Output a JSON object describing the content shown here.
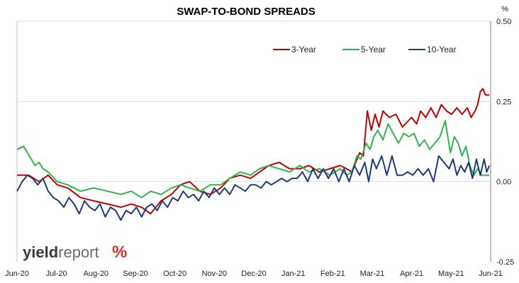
{
  "chart_data": {
    "type": "line",
    "title": "SWAP-TO-BOND SPREADS",
    "y_unit": "%",
    "ylim": [
      -0.25,
      0.5
    ],
    "yticks": [
      "0.50",
      "0.25",
      "0.00",
      "-0.25"
    ],
    "ytick_values": [
      0.5,
      0.25,
      0.0,
      -0.25
    ],
    "x_start": "2020-06-01",
    "x_end": "2021-06-01",
    "xtick_labels": [
      "Jun-20",
      "Jul-20",
      "Aug-20",
      "Sep-20",
      "Oct-20",
      "Nov-20",
      "Dec-20",
      "Jan-21",
      "Feb-21",
      "Mar-21",
      "Apr-21",
      "May-21",
      "Jun-21"
    ],
    "grid": "horizontal",
    "legend_position": "top-right",
    "series": [
      {
        "name": "3-Year",
        "color": "#c00000",
        "points": [
          [
            "2020-06-01",
            0.02
          ],
          [
            "2020-06-10",
            0.02
          ],
          [
            "2020-06-18",
            0.0
          ],
          [
            "2020-06-25",
            0.02
          ],
          [
            "2020-07-02",
            -0.01
          ],
          [
            "2020-07-10",
            -0.02
          ],
          [
            "2020-07-20",
            -0.05
          ],
          [
            "2020-07-30",
            -0.06
          ],
          [
            "2020-08-10",
            -0.07
          ],
          [
            "2020-08-20",
            -0.08
          ],
          [
            "2020-08-28",
            -0.07
          ],
          [
            "2020-09-05",
            -0.08
          ],
          [
            "2020-09-12",
            -0.1
          ],
          [
            "2020-09-20",
            -0.06
          ],
          [
            "2020-09-28",
            -0.04
          ],
          [
            "2020-10-05",
            -0.01
          ],
          [
            "2020-10-12",
            0.0
          ],
          [
            "2020-10-20",
            -0.03
          ],
          [
            "2020-10-28",
            -0.04
          ],
          [
            "2020-11-05",
            -0.02
          ],
          [
            "2020-11-12",
            0.01
          ],
          [
            "2020-11-20",
            0.02
          ],
          [
            "2020-11-28",
            0.01
          ],
          [
            "2020-12-05",
            0.03
          ],
          [
            "2020-12-12",
            0.05
          ],
          [
            "2020-12-20",
            0.06
          ],
          [
            "2020-12-28",
            0.04
          ],
          [
            "2021-01-05",
            0.04
          ],
          [
            "2021-01-12",
            0.05
          ],
          [
            "2021-01-20",
            0.03
          ],
          [
            "2021-01-28",
            0.04
          ],
          [
            "2021-02-05",
            0.05
          ],
          [
            "2021-02-10",
            0.04
          ],
          [
            "2021-02-14",
            0.03
          ],
          [
            "2021-02-17",
            0.06
          ],
          [
            "2021-02-20",
            0.09
          ],
          [
            "2021-02-23",
            0.08
          ],
          [
            "2021-02-26",
            0.22
          ],
          [
            "2021-03-01",
            0.16
          ],
          [
            "2021-03-04",
            0.21
          ],
          [
            "2021-03-07",
            0.17
          ],
          [
            "2021-03-10",
            0.22
          ],
          [
            "2021-03-15",
            0.2
          ],
          [
            "2021-03-20",
            0.21
          ],
          [
            "2021-03-25",
            0.17
          ],
          [
            "2021-04-01",
            0.2
          ],
          [
            "2021-04-05",
            0.18
          ],
          [
            "2021-04-08",
            0.22
          ],
          [
            "2021-04-12",
            0.2
          ],
          [
            "2021-04-16",
            0.23
          ],
          [
            "2021-04-20",
            0.2
          ],
          [
            "2021-04-24",
            0.24
          ],
          [
            "2021-04-28",
            0.22
          ],
          [
            "2021-05-02",
            0.21
          ],
          [
            "2021-05-06",
            0.23
          ],
          [
            "2021-05-10",
            0.21
          ],
          [
            "2021-05-14",
            0.23
          ],
          [
            "2021-05-17",
            0.2
          ],
          [
            "2021-05-20",
            0.22
          ],
          [
            "2021-05-22",
            0.24
          ],
          [
            "2021-05-24",
            0.28
          ],
          [
            "2021-05-26",
            0.29
          ],
          [
            "2021-05-28",
            0.27
          ],
          [
            "2021-05-31",
            0.27
          ]
        ]
      },
      {
        "name": "5-Year",
        "color": "#2fb34a",
        "points": [
          [
            "2020-06-01",
            0.1
          ],
          [
            "2020-06-06",
            0.11
          ],
          [
            "2020-06-09",
            0.09
          ],
          [
            "2020-06-12",
            0.07
          ],
          [
            "2020-06-15",
            0.05
          ],
          [
            "2020-06-18",
            0.06
          ],
          [
            "2020-06-21",
            0.04
          ],
          [
            "2020-06-25",
            0.03
          ],
          [
            "2020-07-02",
            0.0
          ],
          [
            "2020-07-10",
            -0.01
          ],
          [
            "2020-07-20",
            -0.03
          ],
          [
            "2020-07-30",
            -0.02
          ],
          [
            "2020-08-10",
            -0.03
          ],
          [
            "2020-08-20",
            -0.04
          ],
          [
            "2020-08-28",
            -0.03
          ],
          [
            "2020-09-05",
            -0.05
          ],
          [
            "2020-09-12",
            -0.03
          ],
          [
            "2020-09-20",
            -0.04
          ],
          [
            "2020-09-28",
            -0.02
          ],
          [
            "2020-10-05",
            -0.01
          ],
          [
            "2020-10-12",
            -0.02
          ],
          [
            "2020-10-20",
            -0.03
          ],
          [
            "2020-10-28",
            -0.01
          ],
          [
            "2020-11-05",
            -0.01
          ],
          [
            "2020-11-12",
            0.01
          ],
          [
            "2020-11-20",
            0.03
          ],
          [
            "2020-11-28",
            0.02
          ],
          [
            "2020-12-05",
            0.04
          ],
          [
            "2020-12-12",
            0.05
          ],
          [
            "2020-12-20",
            0.04
          ],
          [
            "2020-12-28",
            0.03
          ],
          [
            "2021-01-05",
            0.05
          ],
          [
            "2021-01-12",
            0.03
          ],
          [
            "2021-01-20",
            0.04
          ],
          [
            "2021-01-28",
            0.02
          ],
          [
            "2021-02-05",
            0.04
          ],
          [
            "2021-02-10",
            0.02
          ],
          [
            "2021-02-14",
            0.03
          ],
          [
            "2021-02-18",
            0.08
          ],
          [
            "2021-02-21",
            0.07
          ],
          [
            "2021-02-25",
            0.12
          ],
          [
            "2021-02-28",
            0.1
          ],
          [
            "2021-03-03",
            0.14
          ],
          [
            "2021-03-06",
            0.16
          ],
          [
            "2021-03-10",
            0.13
          ],
          [
            "2021-03-14",
            0.18
          ],
          [
            "2021-03-18",
            0.15
          ],
          [
            "2021-03-22",
            0.12
          ],
          [
            "2021-03-26",
            0.15
          ],
          [
            "2021-03-30",
            0.14
          ],
          [
            "2021-04-03",
            0.15
          ],
          [
            "2021-04-07",
            0.11
          ],
          [
            "2021-04-11",
            0.13
          ],
          [
            "2021-04-15",
            0.1
          ],
          [
            "2021-04-19",
            0.12
          ],
          [
            "2021-04-23",
            0.14
          ],
          [
            "2021-04-27",
            0.19
          ],
          [
            "2021-05-01",
            0.09
          ],
          [
            "2021-05-04",
            0.14
          ],
          [
            "2021-05-07",
            0.12
          ],
          [
            "2021-05-10",
            0.08
          ],
          [
            "2021-05-13",
            0.11
          ],
          [
            "2021-05-16",
            0.05
          ],
          [
            "2021-05-19",
            0.02
          ],
          [
            "2021-05-22",
            0.04
          ],
          [
            "2021-05-25",
            0.02
          ],
          [
            "2021-05-28",
            0.02
          ],
          [
            "2021-05-31",
            0.02
          ]
        ]
      },
      {
        "name": "10-Year",
        "color": "#1f3a7a",
        "points": [
          [
            "2020-06-01",
            -0.03
          ],
          [
            "2020-06-05",
            0.0
          ],
          [
            "2020-06-09",
            0.02
          ],
          [
            "2020-06-13",
            0.01
          ],
          [
            "2020-06-17",
            -0.01
          ],
          [
            "2020-06-21",
            0.01
          ],
          [
            "2020-06-25",
            -0.03
          ],
          [
            "2020-06-29",
            -0.05
          ],
          [
            "2020-07-03",
            -0.06
          ],
          [
            "2020-07-07",
            -0.08
          ],
          [
            "2020-07-11",
            -0.05
          ],
          [
            "2020-07-15",
            -0.07
          ],
          [
            "2020-07-19",
            -0.1
          ],
          [
            "2020-07-23",
            -0.06
          ],
          [
            "2020-07-27",
            -0.08
          ],
          [
            "2020-07-31",
            -0.09
          ],
          [
            "2020-08-04",
            -0.07
          ],
          [
            "2020-08-08",
            -0.11
          ],
          [
            "2020-08-12",
            -0.08
          ],
          [
            "2020-08-16",
            -0.09
          ],
          [
            "2020-08-20",
            -0.12
          ],
          [
            "2020-08-24",
            -0.09
          ],
          [
            "2020-08-28",
            -0.1
          ],
          [
            "2020-09-01",
            -0.08
          ],
          [
            "2020-09-05",
            -0.11
          ],
          [
            "2020-09-09",
            -0.08
          ],
          [
            "2020-09-13",
            -0.07
          ],
          [
            "2020-09-17",
            -0.09
          ],
          [
            "2020-09-21",
            -0.06
          ],
          [
            "2020-09-25",
            -0.08
          ],
          [
            "2020-09-29",
            -0.05
          ],
          [
            "2020-10-03",
            -0.06
          ],
          [
            "2020-10-07",
            -0.03
          ],
          [
            "2020-10-11",
            -0.05
          ],
          [
            "2020-10-15",
            -0.04
          ],
          [
            "2020-10-19",
            -0.06
          ],
          [
            "2020-10-23",
            -0.03
          ],
          [
            "2020-10-27",
            -0.05
          ],
          [
            "2020-10-31",
            -0.02
          ],
          [
            "2020-11-04",
            -0.04
          ],
          [
            "2020-11-08",
            -0.02
          ],
          [
            "2020-11-12",
            -0.04
          ],
          [
            "2020-11-16",
            -0.01
          ],
          [
            "2020-11-20",
            -0.02
          ],
          [
            "2020-11-24",
            -0.03
          ],
          [
            "2020-11-28",
            -0.01
          ],
          [
            "2020-12-02",
            -0.01
          ],
          [
            "2020-12-06",
            -0.02
          ],
          [
            "2020-12-10",
            0.0
          ],
          [
            "2020-12-14",
            -0.01
          ],
          [
            "2020-12-18",
            0.0
          ],
          [
            "2020-12-22",
            0.01
          ],
          [
            "2020-12-26",
            0.0
          ],
          [
            "2020-12-30",
            0.01
          ],
          [
            "2021-01-03",
            0.01
          ],
          [
            "2021-01-07",
            0.03
          ],
          [
            "2021-01-11",
            0.0
          ],
          [
            "2021-01-15",
            0.04
          ],
          [
            "2021-01-19",
            0.01
          ],
          [
            "2021-01-23",
            0.04
          ],
          [
            "2021-01-27",
            0.01
          ],
          [
            "2021-01-31",
            0.04
          ],
          [
            "2021-02-04",
            0.0
          ],
          [
            "2021-02-08",
            0.04
          ],
          [
            "2021-02-12",
            0.0
          ],
          [
            "2021-02-16",
            0.05
          ],
          [
            "2021-02-20",
            0.02
          ],
          [
            "2021-02-24",
            0.06
          ],
          [
            "2021-02-27",
            0.0
          ],
          [
            "2021-03-02",
            0.07
          ],
          [
            "2021-03-05",
            0.04
          ],
          [
            "2021-03-09",
            0.08
          ],
          [
            "2021-03-13",
            0.02
          ],
          [
            "2021-03-17",
            0.08
          ],
          [
            "2021-03-21",
            0.02
          ],
          [
            "2021-03-25",
            0.02
          ],
          [
            "2021-03-29",
            0.03
          ],
          [
            "2021-04-02",
            0.02
          ],
          [
            "2021-04-06",
            0.04
          ],
          [
            "2021-04-10",
            0.02
          ],
          [
            "2021-04-14",
            0.04
          ],
          [
            "2021-04-18",
            0.0
          ],
          [
            "2021-04-22",
            0.08
          ],
          [
            "2021-04-26",
            0.06
          ],
          [
            "2021-04-30",
            0.04
          ],
          [
            "2021-05-03",
            0.07
          ],
          [
            "2021-05-06",
            0.02
          ],
          [
            "2021-05-09",
            0.05
          ],
          [
            "2021-05-12",
            0.03
          ],
          [
            "2021-05-15",
            0.06
          ],
          [
            "2021-05-18",
            0.01
          ],
          [
            "2021-05-21",
            0.07
          ],
          [
            "2021-05-24",
            0.02
          ],
          [
            "2021-05-27",
            0.07
          ],
          [
            "2021-05-29",
            0.03
          ],
          [
            "2021-05-31",
            0.05
          ]
        ]
      }
    ]
  },
  "branding": {
    "logo_word_1": "yield",
    "logo_word_2": "report",
    "logo_symbol": "%"
  }
}
